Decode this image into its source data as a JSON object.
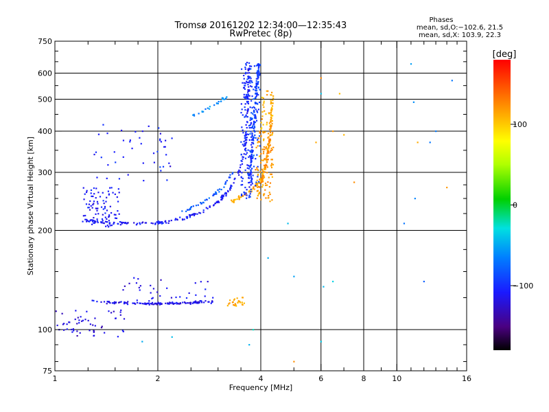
{
  "chart_data": {
    "type": "scatter",
    "title_line1": "Tromsø 20161202 12:34:00—12:35:43",
    "title_line2": "RwPretec (8p)",
    "xlabel": "Frequency [MHz]",
    "ylabel": "Stationary phase Virtual Height [km]",
    "x_scale": "log2",
    "y_scale": "log",
    "xlim": [
      1,
      16
    ],
    "ylim": [
      75,
      750
    ],
    "grid": true,
    "x_ticks": [
      {
        "v": 1,
        "label": "1"
      },
      {
        "v": 2,
        "label": "2"
      },
      {
        "v": 4,
        "label": "4"
      },
      {
        "v": 6,
        "label": "6"
      },
      {
        "v": 8,
        "label": "8"
      },
      {
        "v": 10,
        "label": "10"
      },
      {
        "v": 16,
        "label": "16"
      }
    ],
    "x_minor_ticks": [
      1.25,
      1.5,
      1.75,
      2.5,
      3,
      3.5,
      5,
      7,
      9,
      11,
      12,
      13,
      14,
      15
    ],
    "x_grid": [
      2,
      4,
      6,
      8,
      10
    ],
    "y_ticks": [
      {
        "v": 75,
        "label": "75"
      },
      {
        "v": 100,
        "label": "100"
      },
      {
        "v": 200,
        "label": "200"
      },
      {
        "v": 300,
        "label": "300"
      },
      {
        "v": 400,
        "label": "400"
      },
      {
        "v": 500,
        "label": "500"
      },
      {
        "v": 600,
        "label": "600"
      },
      {
        "v": 750,
        "label": "750"
      }
    ],
    "y_minor_ticks": [
      80,
      90,
      125,
      150,
      175,
      225,
      250,
      275,
      350,
      450,
      550,
      650,
      700
    ],
    "y_grid": [
      100,
      200,
      300,
      400,
      500,
      600
    ],
    "legend": {
      "title": "Phases",
      "line1": "mean, sd,O:−102.6, 21.5",
      "line2": "mean, sd,X: 103.9, 22.3"
    },
    "colorbar": {
      "label": "[deg]",
      "min": -180,
      "max": 180,
      "ticks": [
        {
          "v": 100,
          "label": "100"
        },
        {
          "v": 0,
          "label": "0"
        },
        {
          "v": -100,
          "label": "−100"
        }
      ]
    },
    "series": [
      {
        "kind": "line",
        "phase": -110,
        "jitter": 0.012,
        "points": [
          [
            1.22,
            215
          ],
          [
            1.35,
            212
          ],
          [
            1.5,
            211
          ],
          [
            1.7,
            210
          ],
          [
            1.9,
            210
          ],
          [
            2.1,
            212
          ],
          [
            2.4,
            218
          ],
          [
            2.7,
            228
          ],
          [
            3.0,
            245
          ],
          [
            3.2,
            262
          ],
          [
            3.4,
            290
          ],
          [
            3.55,
            330
          ],
          [
            3.62,
            380
          ],
          [
            3.66,
            450
          ],
          [
            3.68,
            560
          ],
          [
            3.7,
            640
          ]
        ],
        "n": 220
      },
      {
        "kind": "line",
        "phase": -95,
        "jitter": 0.015,
        "points": [
          [
            3.7,
            290
          ],
          [
            3.75,
            330
          ],
          [
            3.8,
            380
          ],
          [
            3.85,
            460
          ],
          [
            3.9,
            560
          ],
          [
            3.95,
            640
          ]
        ],
        "n": 120
      },
      {
        "kind": "line",
        "phase": 112,
        "jitter": 0.012,
        "points": [
          [
            3.25,
            243
          ],
          [
            3.45,
            250
          ],
          [
            3.7,
            262
          ],
          [
            3.9,
            275
          ],
          [
            4.05,
            292
          ],
          [
            4.15,
            320
          ],
          [
            4.22,
            360
          ],
          [
            4.27,
            410
          ],
          [
            4.3,
            470
          ],
          [
            4.32,
            520
          ]
        ],
        "n": 120
      },
      {
        "kind": "line",
        "phase": 125,
        "jitter": 0.01,
        "points": [
          [
            4.0,
            280
          ],
          [
            4.1,
            300
          ],
          [
            4.2,
            340
          ],
          [
            4.25,
            380
          ],
          [
            4.3,
            430
          ]
        ],
        "n": 50
      },
      {
        "kind": "line",
        "phase": -80,
        "jitter": 0.01,
        "points": [
          [
            2.3,
            225
          ],
          [
            2.6,
            238
          ],
          [
            2.9,
            255
          ],
          [
            3.1,
            270
          ],
          [
            3.3,
            300
          ]
        ],
        "n": 50
      },
      {
        "kind": "line",
        "phase": -60,
        "jitter": 0.012,
        "points": [
          [
            2.5,
            440
          ],
          [
            2.8,
            470
          ],
          [
            3.0,
            490
          ],
          [
            3.2,
            510
          ]
        ],
        "n": 25
      },
      {
        "kind": "cloud",
        "phase": -110,
        "xr": [
          1.2,
          1.55
        ],
        "yr": [
          205,
          270
        ],
        "n": 90
      },
      {
        "kind": "cloud",
        "phase": -100,
        "xr": [
          3.5,
          3.78
        ],
        "yr": [
          250,
          650
        ],
        "n": 150
      },
      {
        "kind": "cloud",
        "phase": -92,
        "xr": [
          3.72,
          3.98
        ],
        "yr": [
          270,
          640
        ],
        "n": 80
      },
      {
        "kind": "cloud",
        "phase": 118,
        "xr": [
          3.85,
          4.35
        ],
        "yr": [
          245,
          400
        ],
        "n": 110
      },
      {
        "kind": "cloud",
        "phase": 108,
        "xr": [
          4.0,
          4.35
        ],
        "yr": [
          380,
          530
        ],
        "n": 35
      },
      {
        "kind": "line",
        "phase": -115,
        "jitter": 0.008,
        "points": [
          [
            1.28,
            122
          ],
          [
            1.5,
            121
          ],
          [
            1.8,
            120
          ],
          [
            2.0,
            120
          ],
          [
            2.3,
            120
          ],
          [
            2.6,
            121
          ],
          [
            2.9,
            122
          ]
        ],
        "n": 130
      },
      {
        "kind": "cloud",
        "phase": -120,
        "xr": [
          1.0,
          1.6
        ],
        "yr": [
          95,
          115
        ],
        "n": 55
      },
      {
        "kind": "cloud",
        "phase": -115,
        "xr": [
          1.5,
          2.9
        ],
        "yr": [
          120,
          145
        ],
        "n": 35
      },
      {
        "kind": "cloud",
        "phase": 112,
        "xr": [
          3.2,
          3.6
        ],
        "yr": [
          118,
          126
        ],
        "n": 25
      },
      {
        "kind": "cloud",
        "phase": -105,
        "xr": [
          1.3,
          2.2
        ],
        "yr": [
          280,
          420
        ],
        "n": 45
      },
      {
        "kind": "scatter",
        "phase": -70,
        "pts": [
          [
            11.0,
            640
          ],
          [
            11.2,
            490
          ],
          [
            12.0,
            140
          ],
          [
            12.5,
            370
          ],
          [
            14.5,
            570
          ],
          [
            10.5,
            210
          ],
          [
            11.3,
            250
          ],
          [
            13.0,
            400
          ]
        ]
      },
      {
        "kind": "scatter",
        "phase": 120,
        "pts": [
          [
            6.0,
            580
          ],
          [
            5.8,
            370
          ],
          [
            5.0,
            80
          ],
          [
            6.5,
            400
          ],
          [
            7.0,
            390
          ],
          [
            7.5,
            280
          ],
          [
            14.0,
            270
          ],
          [
            11.5,
            370
          ],
          [
            6.8,
            520
          ]
        ]
      },
      {
        "kind": "scatter",
        "phase": -40,
        "pts": [
          [
            6.0,
            520
          ],
          [
            6.1,
            135
          ],
          [
            6.5,
            140
          ],
          [
            5.0,
            145
          ],
          [
            6.0,
            92
          ],
          [
            3.8,
            100
          ],
          [
            3.7,
            90
          ],
          [
            4.2,
            165
          ],
          [
            4.8,
            210
          ],
          [
            2.2,
            95
          ],
          [
            1.8,
            92
          ]
        ]
      }
    ]
  }
}
